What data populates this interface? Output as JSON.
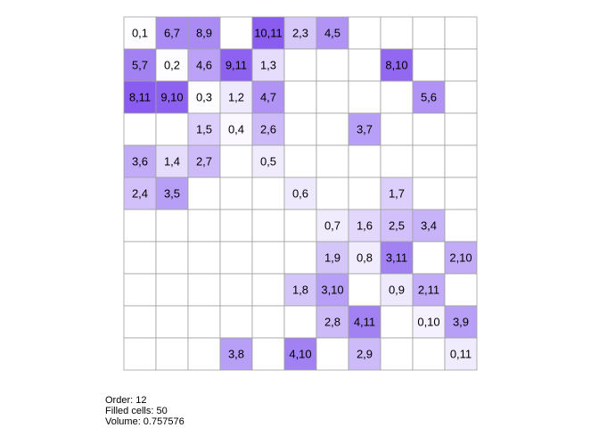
{
  "grid": {
    "rows": [
      [
        {
          "label": "0,1",
          "color": "#fdfcff"
        },
        {
          "label": "6,7",
          "color": "#a98bf3"
        },
        {
          "label": "8,9",
          "color": "#a98bf3"
        },
        null,
        {
          "label": "10,11",
          "color": "#8a5cf0"
        },
        {
          "label": "2,3",
          "color": "#d7c8fa"
        },
        {
          "label": "4,5",
          "color": "#b093f5"
        },
        null,
        null,
        null,
        null
      ],
      [
        {
          "label": "5,7",
          "color": "#a281f2"
        },
        {
          "label": "0,2",
          "color": "#fdfcff"
        },
        {
          "label": "4,6",
          "color": "#bba2f6"
        },
        {
          "label": "9,11",
          "color": "#8e62f0"
        },
        {
          "label": "1,3",
          "color": "#e6dcfc"
        },
        null,
        null,
        null,
        {
          "label": "8,10",
          "color": "#9368f0"
        },
        null,
        null
      ],
      [
        {
          "label": "8,11",
          "color": "#8a5cf0"
        },
        {
          "label": "9,10",
          "color": "#8e62f0"
        },
        {
          "label": "0,3",
          "color": "#fdfcff"
        },
        {
          "label": "1,2",
          "color": "#efe9fd"
        },
        {
          "label": "4,7",
          "color": "#b093f5"
        },
        null,
        null,
        null,
        null,
        {
          "label": "5,6",
          "color": "#b093f5"
        },
        null
      ],
      [
        null,
        null,
        {
          "label": "1,5",
          "color": "#dccffb"
        },
        {
          "label": "0,4",
          "color": "#fbf9ff"
        },
        {
          "label": "2,6",
          "color": "#cdbbf9"
        },
        null,
        null,
        {
          "label": "3,7",
          "color": "#b79ef6"
        },
        null,
        null,
        null
      ],
      [
        {
          "label": "3,6",
          "color": "#c2abf7"
        },
        {
          "label": "1,4",
          "color": "#e6dcfc"
        },
        {
          "label": "2,7",
          "color": "#cdbbf9"
        },
        null,
        {
          "label": "0,5",
          "color": "#f1ecfd"
        },
        null,
        null,
        null,
        null,
        null,
        null
      ],
      [
        {
          "label": "2,4",
          "color": "#d1c0f9"
        },
        {
          "label": "3,5",
          "color": "#b79ef6"
        },
        null,
        null,
        null,
        {
          "label": "0,6",
          "color": "#efe9fd"
        },
        null,
        null,
        {
          "label": "1,7",
          "color": "#dccffb"
        },
        null,
        null
      ],
      [
        null,
        null,
        null,
        null,
        null,
        null,
        {
          "label": "0,7",
          "color": "#f1ecfd"
        },
        {
          "label": "1,6",
          "color": "#e3d8fb"
        },
        {
          "label": "2,5",
          "color": "#d1c0f9"
        },
        {
          "label": "3,4",
          "color": "#c7b4f8"
        },
        null
      ],
      [
        null,
        null,
        null,
        null,
        null,
        null,
        {
          "label": "1,9",
          "color": "#d5c6fa"
        },
        {
          "label": "0,8",
          "color": "#f1ecfd"
        },
        {
          "label": "3,11",
          "color": "#a281f2"
        },
        null,
        {
          "label": "2,10",
          "color": "#c2abf7"
        }
      ],
      [
        null,
        null,
        null,
        null,
        null,
        {
          "label": "1,8",
          "color": "#d5c6fa"
        },
        {
          "label": "3,10",
          "color": "#b79ef6"
        },
        null,
        {
          "label": "0,9",
          "color": "#efe9fd"
        },
        {
          "label": "2,11",
          "color": "#c2abf7"
        },
        null
      ],
      [
        null,
        null,
        null,
        null,
        null,
        null,
        {
          "label": "2,8",
          "color": "#cdbbf9"
        },
        {
          "label": "4,11",
          "color": "#a281f2"
        },
        null,
        {
          "label": "0,10",
          "color": "#f5f1fe"
        },
        {
          "label": "3,9",
          "color": "#b79ef6"
        }
      ],
      [
        null,
        null,
        null,
        {
          "label": "3,8",
          "color": "#b79ef6"
        },
        null,
        {
          "label": "4,10",
          "color": "#a281f2"
        },
        null,
        {
          "label": "2,9",
          "color": "#cdbbf9"
        },
        null,
        null,
        {
          "label": "0,11",
          "color": "#f1ecfd"
        }
      ]
    ]
  },
  "footer": {
    "lines": [
      "Order: 12",
      "Filled cells: 50",
      "Volume: 0.757576"
    ]
  }
}
